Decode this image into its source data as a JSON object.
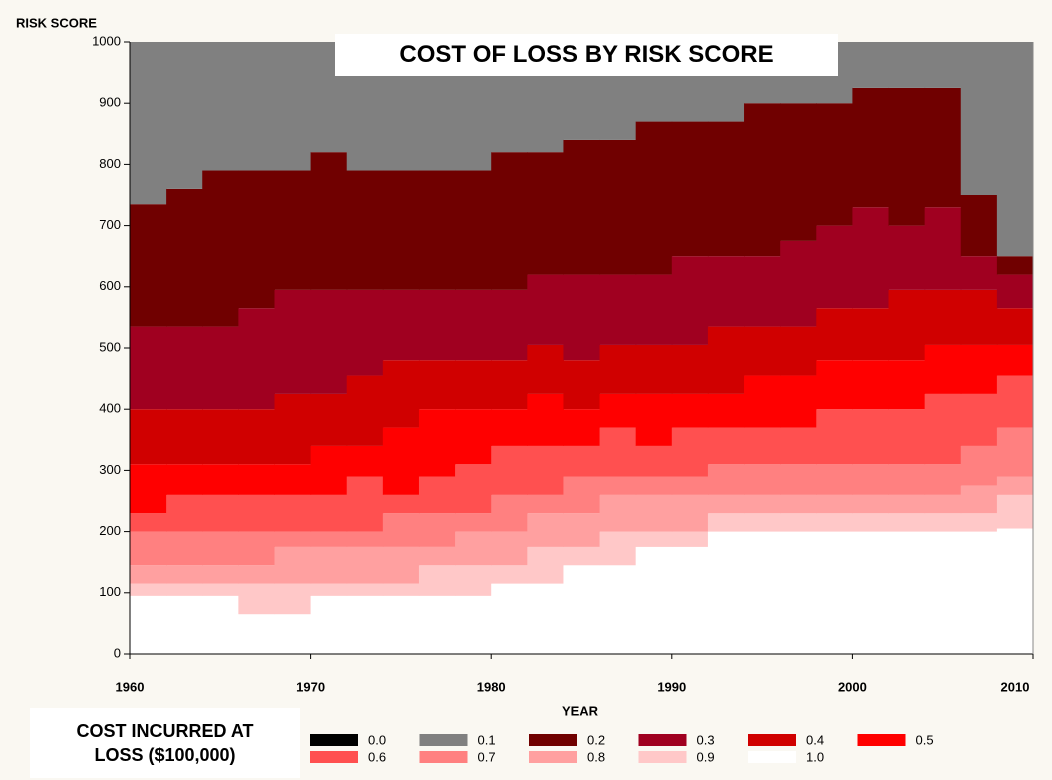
{
  "chart_data": {
    "type": "stacked_step_area",
    "title": "COST OF LOSS BY RISK SCORE",
    "xlabel": "YEAR",
    "ylabel": "RISK SCORE",
    "legend_title": "COST INCURRED AT LOSS ($100,000)",
    "x": [
      1960,
      1962,
      1964,
      1966,
      1968,
      1970,
      1972,
      1974,
      1976,
      1978,
      1980,
      1982,
      1984,
      1986,
      1988,
      1990,
      1992,
      1994,
      1996,
      1998,
      2000,
      2002,
      2004,
      2006,
      2008
    ],
    "xlim": [
      1960,
      2010
    ],
    "xticks": [
      1960,
      1970,
      1980,
      1990,
      2000,
      2010
    ],
    "ylim": [
      0,
      1000
    ],
    "yticks": [
      0,
      100,
      200,
      300,
      400,
      500,
      600,
      700,
      800,
      900,
      1000
    ],
    "series": [
      {
        "name": "0.0",
        "color": "#000000",
        "values": [
          0,
          0,
          0,
          0,
          0,
          0,
          0,
          0,
          0,
          0,
          0,
          0,
          0,
          0,
          0,
          0,
          0,
          0,
          0,
          0,
          0,
          0,
          0,
          0,
          0
        ]
      },
      {
        "name": "0.1",
        "color": "#808080",
        "values": [
          265,
          240,
          210,
          210,
          210,
          180,
          210,
          210,
          210,
          210,
          180,
          180,
          160,
          160,
          130,
          130,
          130,
          100,
          100,
          100,
          75,
          75,
          75,
          250,
          350
        ]
      },
      {
        "name": "0.2",
        "color": "#700000",
        "values": [
          200,
          225,
          255,
          225,
          195,
          225,
          195,
          195,
          195,
          195,
          225,
          200,
          220,
          220,
          250,
          220,
          220,
          250,
          225,
          200,
          195,
          225,
          195,
          100,
          30
        ]
      },
      {
        "name": "0.3",
        "color": "#a00020",
        "values": [
          135,
          135,
          135,
          165,
          170,
          170,
          140,
          115,
          115,
          115,
          115,
          115,
          140,
          115,
          115,
          145,
          115,
          115,
          140,
          135,
          165,
          105,
          135,
          55,
          55
        ]
      },
      {
        "name": "0.4",
        "color": "#d00000",
        "values": [
          90,
          90,
          90,
          90,
          115,
          85,
          115,
          110,
          80,
          80,
          80,
          80,
          80,
          80,
          80,
          80,
          110,
          80,
          80,
          85,
          85,
          115,
          90,
          90,
          60
        ]
      },
      {
        "name": "0.5",
        "color": "#ff0000",
        "values": [
          80,
          50,
          50,
          50,
          50,
          80,
          50,
          110,
          110,
          90,
          60,
          85,
          60,
          55,
          85,
          55,
          55,
          85,
          85,
          80,
          80,
          80,
          80,
          80,
          50
        ]
      },
      {
        "name": "0.6",
        "color": "#ff5050",
        "values": [
          30,
          60,
          60,
          60,
          60,
          60,
          90,
          30,
          60,
          80,
          80,
          80,
          50,
          80,
          50,
          80,
          60,
          60,
          60,
          90,
          90,
          90,
          115,
          85,
          85
        ]
      },
      {
        "name": "0.7",
        "color": "#ff8080",
        "values": [
          55,
          55,
          55,
          55,
          25,
          25,
          25,
          55,
          55,
          30,
          60,
          30,
          60,
          30,
          30,
          30,
          50,
          50,
          50,
          50,
          50,
          50,
          50,
          65,
          80
        ]
      },
      {
        "name": "0.8",
        "color": "#ffa0a0",
        "values": [
          30,
          30,
          30,
          30,
          60,
          60,
          60,
          60,
          30,
          55,
          55,
          55,
          55,
          60,
          60,
          60,
          30,
          30,
          30,
          30,
          30,
          30,
          30,
          45,
          30
        ]
      },
      {
        "name": "0.9",
        "color": "#ffc8c8",
        "values": [
          20,
          20,
          20,
          50,
          50,
          20,
          20,
          20,
          50,
          50,
          30,
          60,
          30,
          55,
          25,
          25,
          30,
          30,
          30,
          30,
          30,
          30,
          30,
          30,
          55
        ]
      },
      {
        "name": "1.0",
        "color": "#ffffff",
        "values": [
          95,
          95,
          95,
          65,
          65,
          95,
          95,
          95,
          95,
          95,
          115,
          115,
          145,
          145,
          175,
          175,
          200,
          200,
          200,
          200,
          200,
          200,
          200,
          200,
          205
        ]
      }
    ]
  }
}
